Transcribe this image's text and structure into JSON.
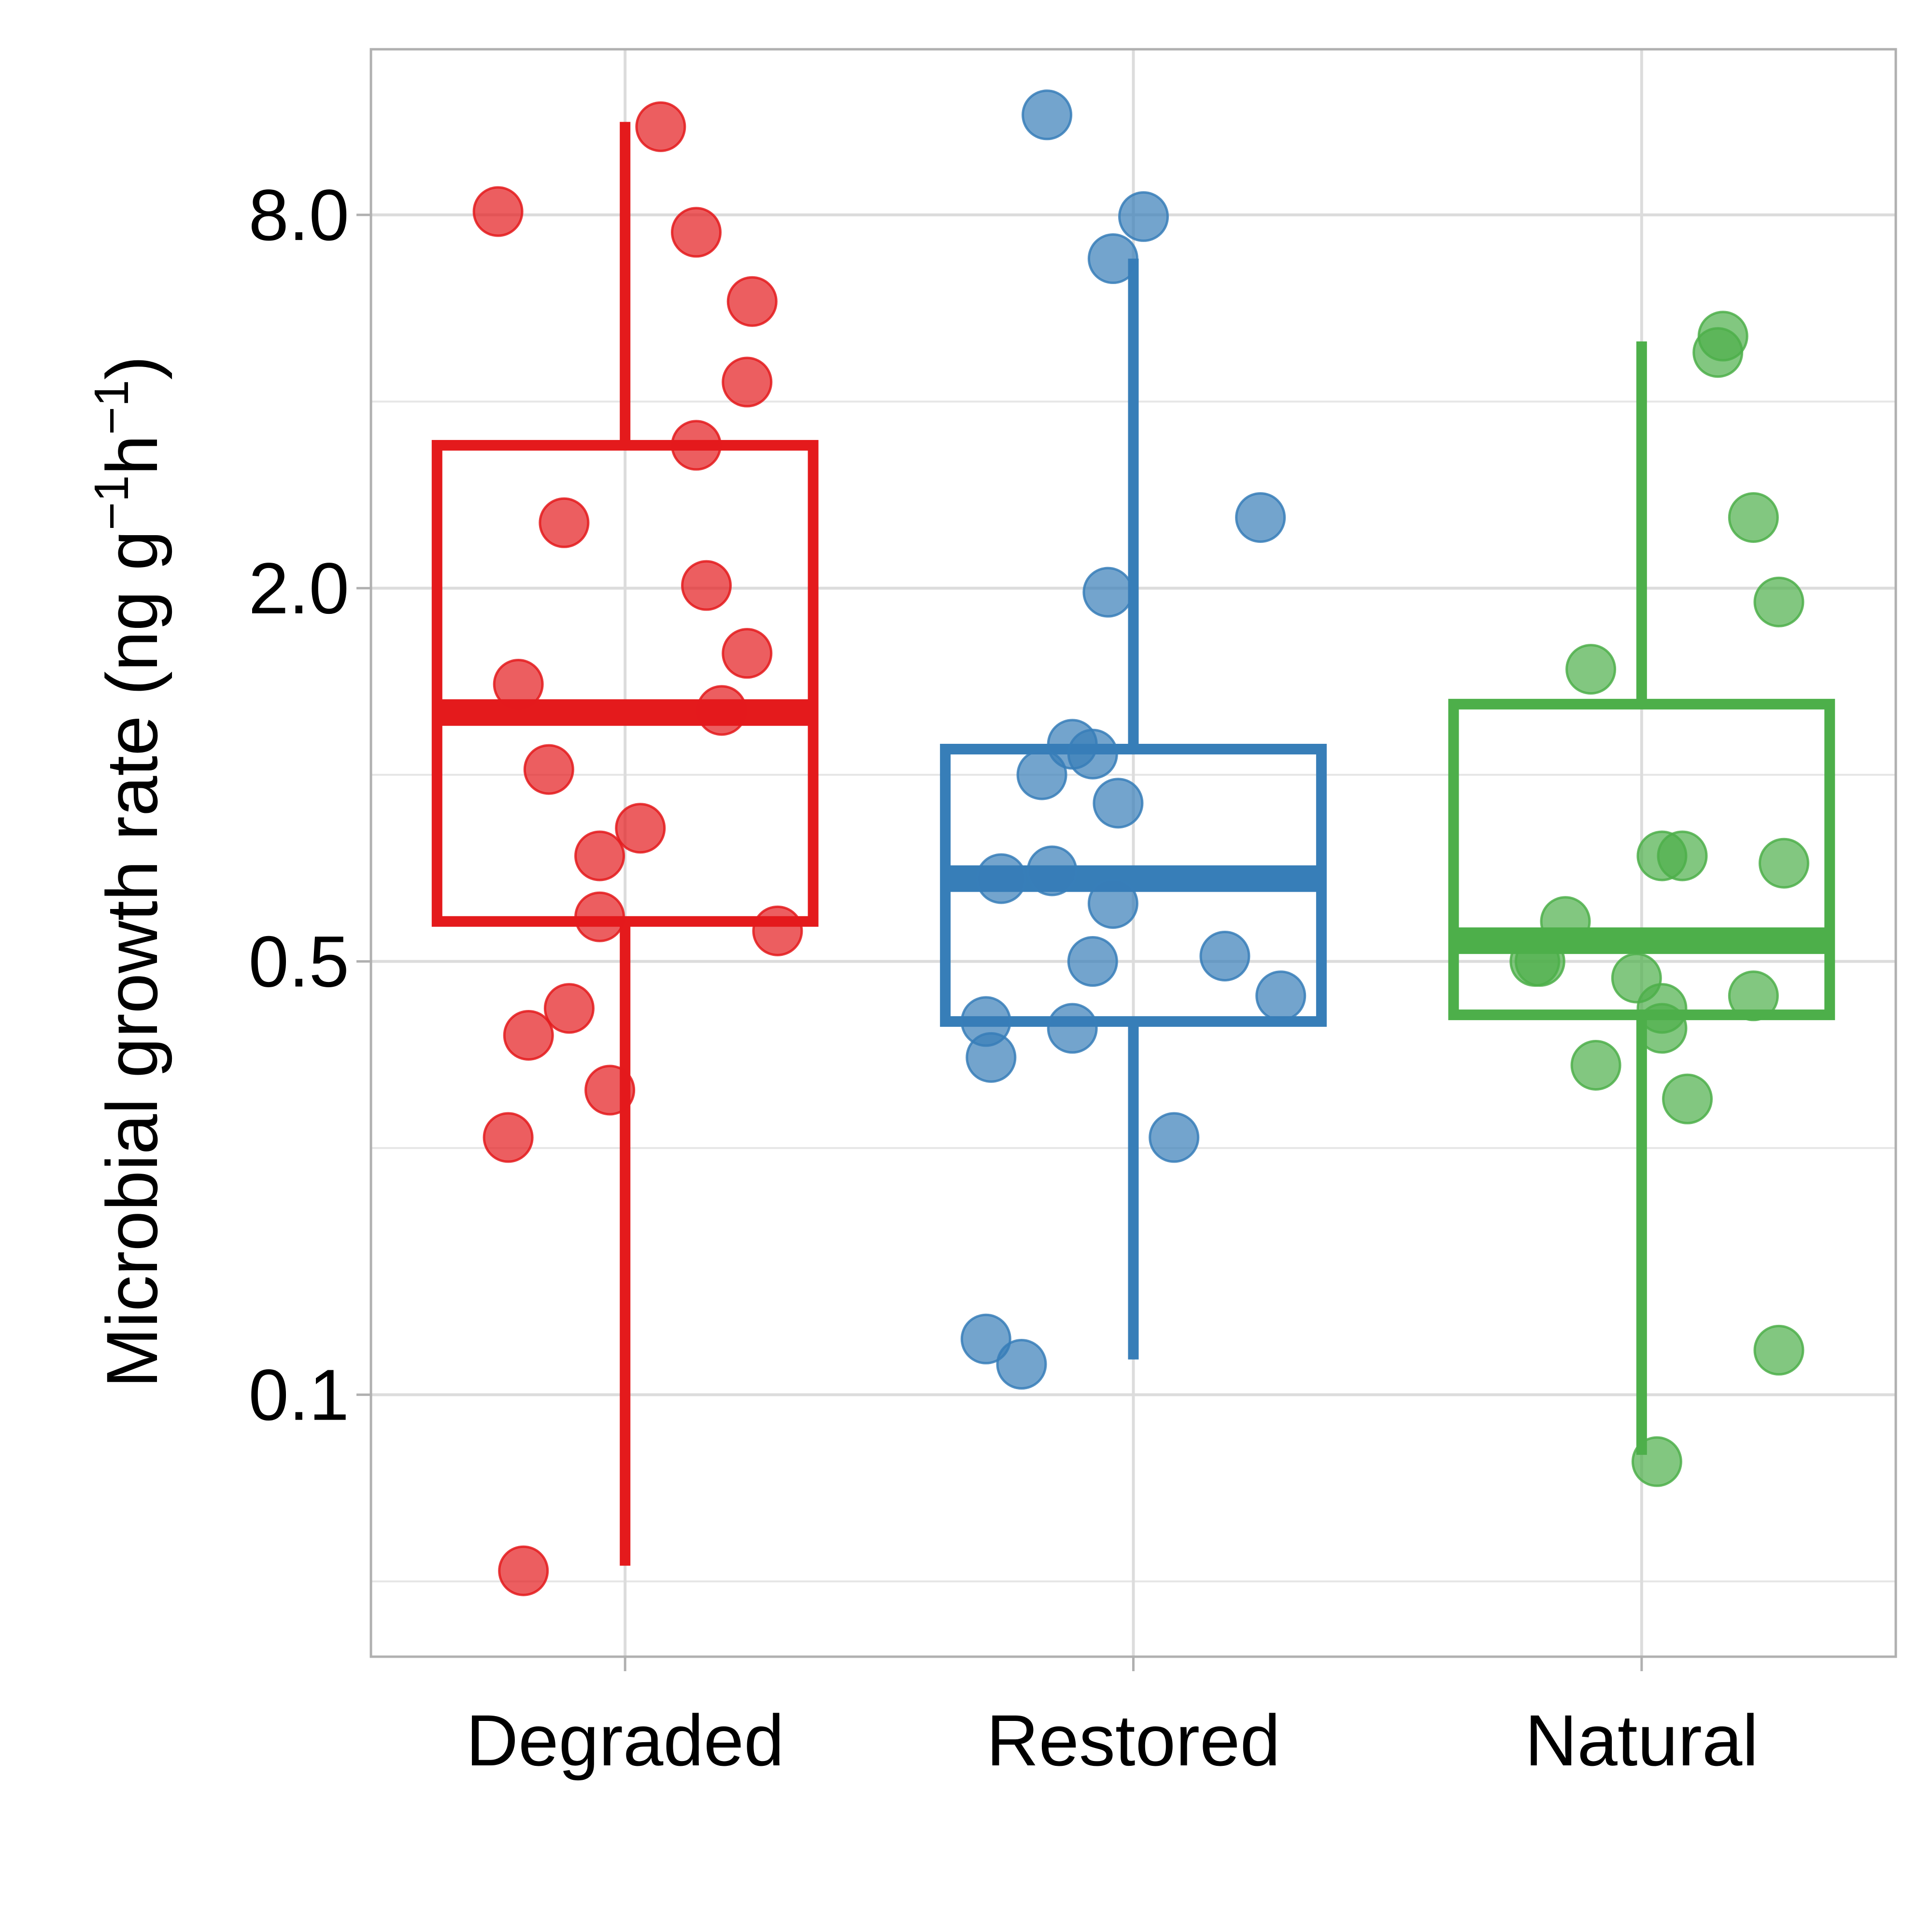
{
  "chart_data": {
    "type": "box",
    "title": "",
    "xlabel": "",
    "ylabel": {
      "text": "Microbial growth rate (ng g",
      "sup1": "−1",
      "mid": "h",
      "sup2": "−1",
      "end": ")"
    },
    "y_scale": "log",
    "ylim": [
      0.0378,
      14.8
    ],
    "y_ticks": [
      {
        "value": 0.1,
        "label": "0.1"
      },
      {
        "value": 0.5,
        "label": "0.5"
      },
      {
        "value": 2.0,
        "label": "2.0"
      },
      {
        "value": 8.0,
        "label": "8.0"
      }
    ],
    "y_minor_gridlines": [
      0.05,
      0.25,
      1.0,
      4.0
    ],
    "grid": true,
    "legend": "none",
    "categories": [
      "Degraded",
      "Restored",
      "Natural"
    ],
    "boxes": [
      {
        "name": "Degraded",
        "color": "#e41a1c",
        "whisker_low": 0.053,
        "q1": 0.58,
        "median": 1.26,
        "q3": 3.4,
        "whisker_high": 11.3,
        "points": [
          {
            "x": -0.25,
            "y": 8.1
          },
          {
            "x": 0.07,
            "y": 11.1
          },
          {
            "x": 0.14,
            "y": 7.5
          },
          {
            "x": 0.25,
            "y": 5.8
          },
          {
            "x": 0.24,
            "y": 4.3
          },
          {
            "x": 0.14,
            "y": 3.4
          },
          {
            "x": -0.12,
            "y": 2.55
          },
          {
            "x": 0.16,
            "y": 2.02
          },
          {
            "x": 0.24,
            "y": 1.57
          },
          {
            "x": -0.21,
            "y": 1.4
          },
          {
            "x": 0.19,
            "y": 1.27
          },
          {
            "x": -0.15,
            "y": 1.02
          },
          {
            "x": 0.03,
            "y": 0.82
          },
          {
            "x": -0.05,
            "y": 0.74
          },
          {
            "x": -0.05,
            "y": 0.59
          },
          {
            "x": 0.3,
            "y": 0.56
          },
          {
            "x": -0.11,
            "y": 0.42
          },
          {
            "x": -0.19,
            "y": 0.38
          },
          {
            "x": -0.03,
            "y": 0.31
          },
          {
            "x": -0.23,
            "y": 0.26
          },
          {
            "x": -0.2,
            "y": 0.052
          }
        ]
      },
      {
        "name": "Restored",
        "color": "#377eb8",
        "whisker_low": 0.114,
        "q1": 0.4,
        "median": 0.68,
        "q3": 1.1,
        "whisker_high": 6.8,
        "points": [
          {
            "x": -0.17,
            "y": 11.6
          },
          {
            "x": 0.02,
            "y": 7.95
          },
          {
            "x": -0.04,
            "y": 6.8
          },
          {
            "x": 0.25,
            "y": 2.6
          },
          {
            "x": -0.05,
            "y": 1.97
          },
          {
            "x": -0.12,
            "y": 1.12
          },
          {
            "x": -0.08,
            "y": 1.08
          },
          {
            "x": -0.18,
            "y": 1.0
          },
          {
            "x": -0.03,
            "y": 0.9
          },
          {
            "x": -0.26,
            "y": 0.68
          },
          {
            "x": -0.16,
            "y": 0.7
          },
          {
            "x": -0.04,
            "y": 0.62
          },
          {
            "x": -0.08,
            "y": 0.5
          },
          {
            "x": 0.18,
            "y": 0.51
          },
          {
            "x": 0.29,
            "y": 0.44
          },
          {
            "x": -0.29,
            "y": 0.4
          },
          {
            "x": -0.12,
            "y": 0.39
          },
          {
            "x": -0.28,
            "y": 0.35
          },
          {
            "x": 0.08,
            "y": 0.26
          },
          {
            "x": -0.29,
            "y": 0.123
          },
          {
            "x": -0.22,
            "y": 0.112
          }
        ]
      },
      {
        "name": "Natural",
        "color": "#4daf4a",
        "whisker_low": 0.08,
        "q1": 0.41,
        "median": 0.54,
        "q3": 1.3,
        "whisker_high": 5.0,
        "points": [
          {
            "x": 0.16,
            "y": 5.1
          },
          {
            "x": 0.15,
            "y": 4.8
          },
          {
            "x": 0.22,
            "y": 2.6
          },
          {
            "x": 0.27,
            "y": 1.9
          },
          {
            "x": -0.1,
            "y": 1.48
          },
          {
            "x": 0.04,
            "y": 0.74
          },
          {
            "x": 0.08,
            "y": 0.74
          },
          {
            "x": 0.28,
            "y": 0.72
          },
          {
            "x": -0.15,
            "y": 0.58
          },
          {
            "x": -0.21,
            "y": 0.5
          },
          {
            "x": -0.2,
            "y": 0.5
          },
          {
            "x": -0.01,
            "y": 0.47
          },
          {
            "x": 0.22,
            "y": 0.44
          },
          {
            "x": 0.04,
            "y": 0.42
          },
          {
            "x": 0.04,
            "y": 0.39
          },
          {
            "x": -0.09,
            "y": 0.34
          },
          {
            "x": 0.09,
            "y": 0.3
          },
          {
            "x": 0.27,
            "y": 0.118
          },
          {
            "x": 0.03,
            "y": 0.078
          }
        ]
      }
    ]
  }
}
